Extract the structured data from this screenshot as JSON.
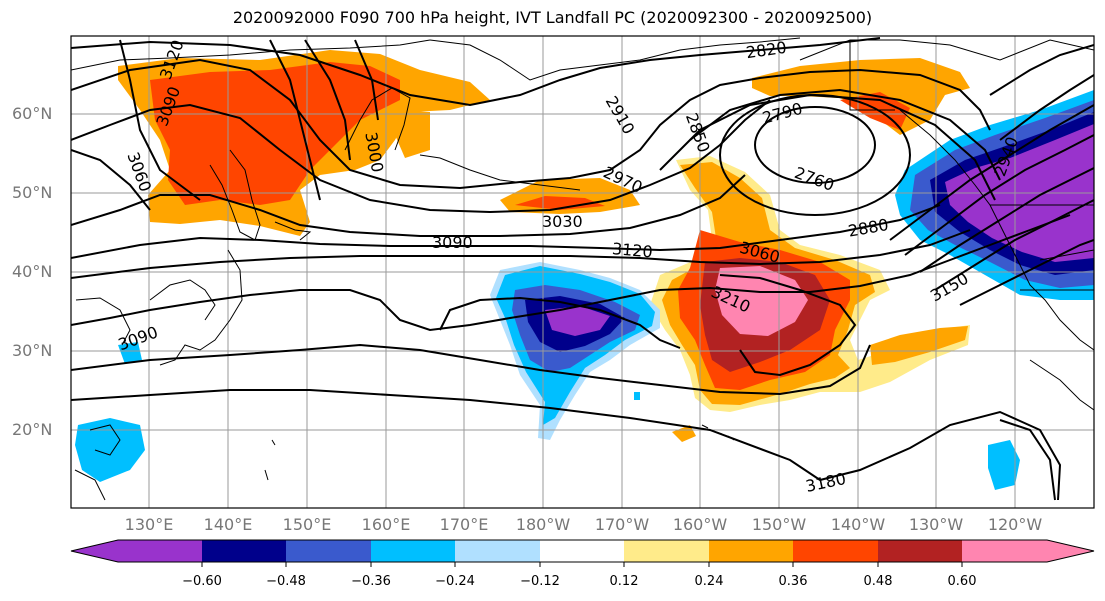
{
  "title": "2020092000 F090 700 hPa height, IVT Landfall PC (2020092300 - 2020092500)",
  "lat_labels": [
    "60°N",
    "50°N",
    "40°N",
    "30°N",
    "20°N"
  ],
  "lon_labels": [
    "130°E",
    "140°E",
    "150°E",
    "160°E",
    "170°E",
    "180°W",
    "170°W",
    "160°W",
    "150°W",
    "140°W",
    "130°W",
    "120°W"
  ],
  "contour_labels": [
    "2820",
    "3120",
    "3090",
    "2910",
    "2850",
    "2790",
    "3000",
    "3060",
    "2970",
    "2760",
    "2940",
    "3030",
    "2880",
    "3090",
    "3120",
    "3060",
    "3150",
    "3210",
    "3090",
    "3180"
  ],
  "colorbar": {
    "ticks": [
      "−0.60",
      "−0.48",
      "−0.36",
      "−0.24",
      "−0.12",
      "0.12",
      "0.24",
      "0.36",
      "0.48",
      "0.60"
    ],
    "colors": [
      "#9933cc",
      "#00008b",
      "#3a5acd",
      "#00bfff",
      "#b0e0ff",
      "#ffffff",
      "#ffeb8a",
      "#ffa500",
      "#ff4500",
      "#b22222",
      "#ff85b0"
    ]
  },
  "colors": {
    "positive_1": "#ffeb8a",
    "positive_2": "#ffa500",
    "positive_3": "#ff4500",
    "positive_4": "#b22222",
    "positive_5": "#ff85b0",
    "negative_1": "#b0e0ff",
    "negative_2": "#00bfff",
    "negative_3": "#3a5acd",
    "negative_4": "#00008b",
    "negative_5": "#9933cc"
  }
}
